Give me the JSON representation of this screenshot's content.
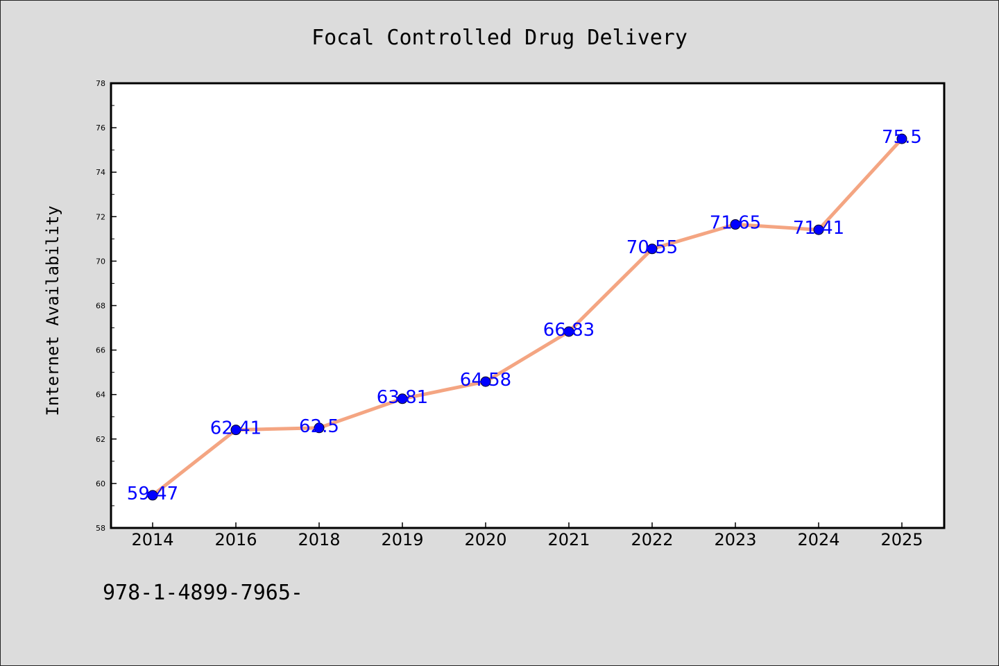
{
  "chart_data": {
    "type": "line",
    "title": "Focal Controlled Drug Delivery",
    "xlabel": "",
    "ylabel": "Internet Availability",
    "categories": [
      "2014",
      "2016",
      "2018",
      "2019",
      "2020",
      "2021",
      "2022",
      "2023",
      "2024",
      "2025"
    ],
    "values": [
      59.47,
      62.41,
      62.5,
      63.81,
      64.58,
      66.83,
      70.55,
      71.65,
      71.41,
      75.5
    ],
    "data_labels": [
      "59.47",
      "62.41",
      "62.5",
      "63.81",
      "64.58",
      "66.83",
      "70.55",
      "71.65",
      "71.41",
      "75.5"
    ],
    "ylim": [
      58,
      78
    ],
    "yticks": [
      "58",
      "60",
      "62",
      "64",
      "66",
      "68",
      "70",
      "72",
      "74",
      "76",
      "78"
    ],
    "grid": false,
    "line_color": "#f4a582",
    "marker_color": "#0000ff",
    "label_color": "#0000ff"
  },
  "footer": {
    "text": "978-1-4899-7965-"
  }
}
